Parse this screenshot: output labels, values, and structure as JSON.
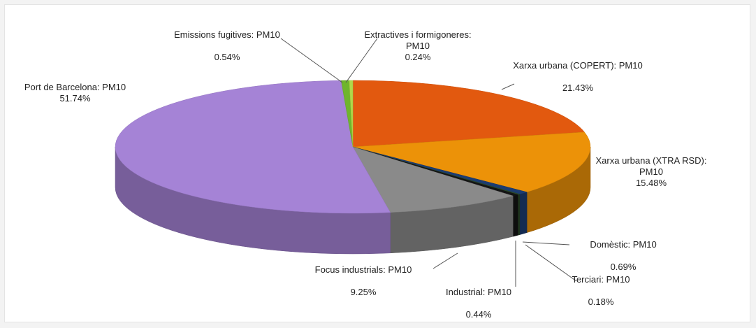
{
  "chart_data": {
    "type": "pie",
    "categories": [
      "Xarxa urbana (COPERT): PM10",
      "Xarxa urbana (XTRA RSD): PM10",
      "Domèstic: PM10",
      "Terciari: PM10",
      "Industrial: PM10",
      "Focus industrials: PM10",
      "Port de Barcelona: PM10",
      "Emissions fugitives: PM10",
      "Extractives i formigoneres: PM10"
    ],
    "values": [
      21.43,
      15.48,
      0.69,
      0.18,
      0.44,
      9.25,
      51.74,
      0.54,
      0.24
    ],
    "value_labels": [
      "21.43%",
      "15.48%",
      "0.69%",
      "0.18%",
      "0.44%",
      "9.25%",
      "51.74%",
      "0.54%",
      "0.24%"
    ],
    "colors": [
      "#e2590f",
      "#ec9208",
      "#1c3c72",
      "#2b4a2a",
      "#141414",
      "#8a8a8a",
      "#a583d6",
      "#6fb52c",
      "#b0d84a"
    ]
  }
}
